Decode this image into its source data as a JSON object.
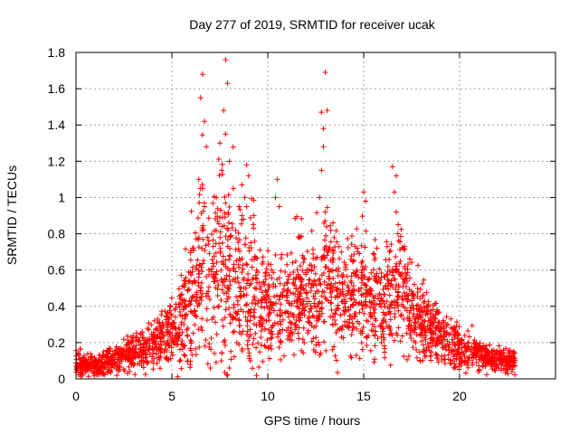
{
  "chart_data": {
    "type": "scatter",
    "title": "Day 277 of 2019, SRMTID for receiver ucak",
    "xlabel": "GPS time / hours",
    "ylabel": "SRMTID / TECUs",
    "xlim": [
      0,
      25
    ],
    "ylim": [
      0,
      1.8
    ],
    "xticks": [
      0,
      5,
      10,
      15,
      20
    ],
    "yticks": [
      0,
      0.2,
      0.4,
      0.6,
      0.8,
      1,
      1.2,
      1.4,
      1.6,
      1.8
    ],
    "ytick_labels": [
      "0",
      "0.2",
      "0.4",
      "0.6",
      "0.8",
      "1",
      "1.2",
      "1.4",
      "1.6",
      "1.8"
    ],
    "grid": true,
    "marker": "+",
    "series": [
      {
        "name": "SRMTID",
        "color": "#ff0000",
        "envelope_note": "dense point cloud approximated by this envelope (hour, typical value, spread)",
        "envelope": [
          [
            0.0,
            0.09,
            0.05
          ],
          [
            0.5,
            0.08,
            0.04
          ],
          [
            1.0,
            0.07,
            0.04
          ],
          [
            1.5,
            0.09,
            0.05
          ],
          [
            2.0,
            0.11,
            0.05
          ],
          [
            2.5,
            0.13,
            0.06
          ],
          [
            3.0,
            0.16,
            0.07
          ],
          [
            3.5,
            0.17,
            0.07
          ],
          [
            4.0,
            0.19,
            0.08
          ],
          [
            4.5,
            0.23,
            0.1
          ],
          [
            5.0,
            0.26,
            0.12
          ],
          [
            5.5,
            0.3,
            0.15
          ],
          [
            6.0,
            0.45,
            0.25
          ],
          [
            6.5,
            0.6,
            0.35
          ],
          [
            7.0,
            0.55,
            0.32
          ],
          [
            7.5,
            0.62,
            0.35
          ],
          [
            8.0,
            0.6,
            0.32
          ],
          [
            8.5,
            0.55,
            0.3
          ],
          [
            9.0,
            0.5,
            0.28
          ],
          [
            9.5,
            0.42,
            0.22
          ],
          [
            10.0,
            0.4,
            0.18
          ],
          [
            10.5,
            0.4,
            0.18
          ],
          [
            11.0,
            0.42,
            0.2
          ],
          [
            11.5,
            0.45,
            0.22
          ],
          [
            12.0,
            0.45,
            0.22
          ],
          [
            12.5,
            0.48,
            0.24
          ],
          [
            13.0,
            0.55,
            0.26
          ],
          [
            13.5,
            0.48,
            0.22
          ],
          [
            14.0,
            0.42,
            0.2
          ],
          [
            14.5,
            0.46,
            0.22
          ],
          [
            15.0,
            0.5,
            0.24
          ],
          [
            15.5,
            0.45,
            0.2
          ],
          [
            16.0,
            0.42,
            0.2
          ],
          [
            16.5,
            0.48,
            0.22
          ],
          [
            17.0,
            0.52,
            0.24
          ],
          [
            17.5,
            0.4,
            0.18
          ],
          [
            18.0,
            0.32,
            0.15
          ],
          [
            18.5,
            0.28,
            0.13
          ],
          [
            19.0,
            0.24,
            0.11
          ],
          [
            19.5,
            0.2,
            0.09
          ],
          [
            20.0,
            0.18,
            0.08
          ],
          [
            20.5,
            0.15,
            0.07
          ],
          [
            21.0,
            0.13,
            0.06
          ],
          [
            21.5,
            0.11,
            0.05
          ],
          [
            22.0,
            0.1,
            0.05
          ],
          [
            22.5,
            0.1,
            0.05
          ],
          [
            22.9,
            0.1,
            0.04
          ]
        ],
        "outliers": [
          [
            6.6,
            1.68
          ],
          [
            6.5,
            1.55
          ],
          [
            6.7,
            1.42
          ],
          [
            6.8,
            1.28
          ],
          [
            6.4,
            1.1
          ],
          [
            6.6,
            1.05
          ],
          [
            6.7,
            0.95
          ],
          [
            7.8,
            1.76
          ],
          [
            7.9,
            1.63
          ],
          [
            7.7,
            1.48
          ],
          [
            7.8,
            1.35
          ],
          [
            7.6,
            1.15
          ],
          [
            8.0,
            1.2
          ],
          [
            7.5,
            1.3
          ],
          [
            8.2,
            1.05
          ],
          [
            8.5,
            0.95
          ],
          [
            8.9,
            1.18
          ],
          [
            9.0,
            1.12
          ],
          [
            8.8,
            1.0
          ],
          [
            10.5,
            1.1
          ],
          [
            10.4,
            1.0
          ],
          [
            10.6,
            0.95
          ],
          [
            12.8,
            1.47
          ],
          [
            12.9,
            1.38
          ],
          [
            12.9,
            1.28
          ],
          [
            12.8,
            1.15
          ],
          [
            12.7,
            1.0
          ],
          [
            13.0,
            0.92
          ],
          [
            13.0,
            1.69
          ],
          [
            13.1,
            1.48
          ],
          [
            15.0,
            1.03
          ],
          [
            15.1,
            0.98
          ],
          [
            16.5,
            1.17
          ],
          [
            16.7,
            1.12
          ],
          [
            16.6,
            1.03
          ],
          [
            16.7,
            0.92
          ],
          [
            16.8,
            0.85
          ],
          [
            7.9,
            0.02
          ],
          [
            8.0,
            0.06
          ]
        ]
      }
    ]
  }
}
